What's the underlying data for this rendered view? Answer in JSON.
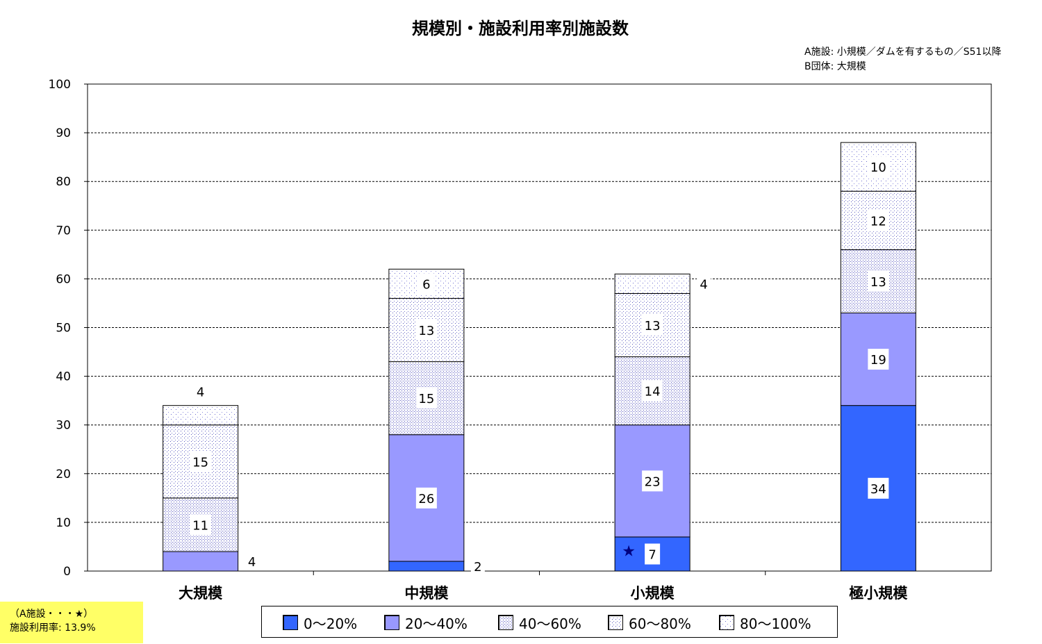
{
  "chart_data": {
    "type": "bar",
    "stacked": true,
    "title": "規模別・施設利用率別施設数",
    "categories": [
      "大規模",
      "中規模",
      "小規模",
      "極小規模"
    ],
    "series": [
      {
        "name": "0～20%",
        "values": [
          0,
          2,
          7,
          34
        ],
        "color": "#3366ff",
        "pattern": "solid"
      },
      {
        "name": "20～40%",
        "values": [
          4,
          26,
          23,
          19
        ],
        "color": "#9999ff",
        "pattern": "solid"
      },
      {
        "name": "40～60%",
        "values": [
          11,
          15,
          14,
          13
        ],
        "color": "#6666cc",
        "pattern": "dense-dots"
      },
      {
        "name": "60～80%",
        "values": [
          15,
          13,
          13,
          12
        ],
        "color": "#6666cc",
        "pattern": "medium-dots"
      },
      {
        "name": "80～100%",
        "values": [
          4,
          6,
          4,
          10
        ],
        "color": "#6666cc",
        "pattern": "sparse-dots"
      }
    ],
    "ylim": [
      0,
      100
    ],
    "yticks": [
      0,
      10,
      20,
      30,
      40,
      50,
      60,
      70,
      80,
      90,
      100
    ],
    "grid": "horizontal-dashed",
    "legend_position": "bottom",
    "annotations": {
      "notes": [
        "A施設: 小規模／ダムを有するもの／S51以降",
        "B団体: 大規模"
      ],
      "marker": {
        "symbol": "★",
        "category": "小規模",
        "series": "0～20%"
      },
      "box": [
        "（A施設・・・★）",
        "施設利用率: 13.9%"
      ]
    }
  }
}
